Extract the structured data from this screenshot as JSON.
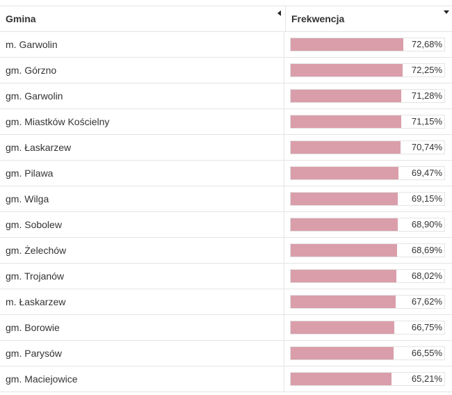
{
  "table": {
    "headers": {
      "name": "Gmina",
      "value": "Frekwencja"
    },
    "bar_color": "#d99eaa",
    "rows": [
      {
        "name": "m. Garwolin",
        "value": "72,68%",
        "fraction": 0.7268
      },
      {
        "name": "gm. Górzno",
        "value": "72,25%",
        "fraction": 0.7225
      },
      {
        "name": "gm. Garwolin",
        "value": "71,28%",
        "fraction": 0.7128
      },
      {
        "name": "gm. Miastków Kościelny",
        "value": "71,15%",
        "fraction": 0.7115
      },
      {
        "name": "gm. Łaskarzew",
        "value": "70,74%",
        "fraction": 0.7074
      },
      {
        "name": "gm. Pilawa",
        "value": "69,47%",
        "fraction": 0.6947
      },
      {
        "name": "gm. Wilga",
        "value": "69,15%",
        "fraction": 0.6915
      },
      {
        "name": "gm. Sobolew",
        "value": "68,90%",
        "fraction": 0.689
      },
      {
        "name": "gm. Żelechów",
        "value": "68,69%",
        "fraction": 0.6869
      },
      {
        "name": "gm. Trojanów",
        "value": "68,02%",
        "fraction": 0.6802
      },
      {
        "name": "m. Łaskarzew",
        "value": "67,62%",
        "fraction": 0.6762
      },
      {
        "name": "gm. Borowie",
        "value": "66,75%",
        "fraction": 0.6675
      },
      {
        "name": "gm. Parysów",
        "value": "66,55%",
        "fraction": 0.6655
      },
      {
        "name": "gm. Maciejowice",
        "value": "65,21%",
        "fraction": 0.6521
      }
    ]
  }
}
